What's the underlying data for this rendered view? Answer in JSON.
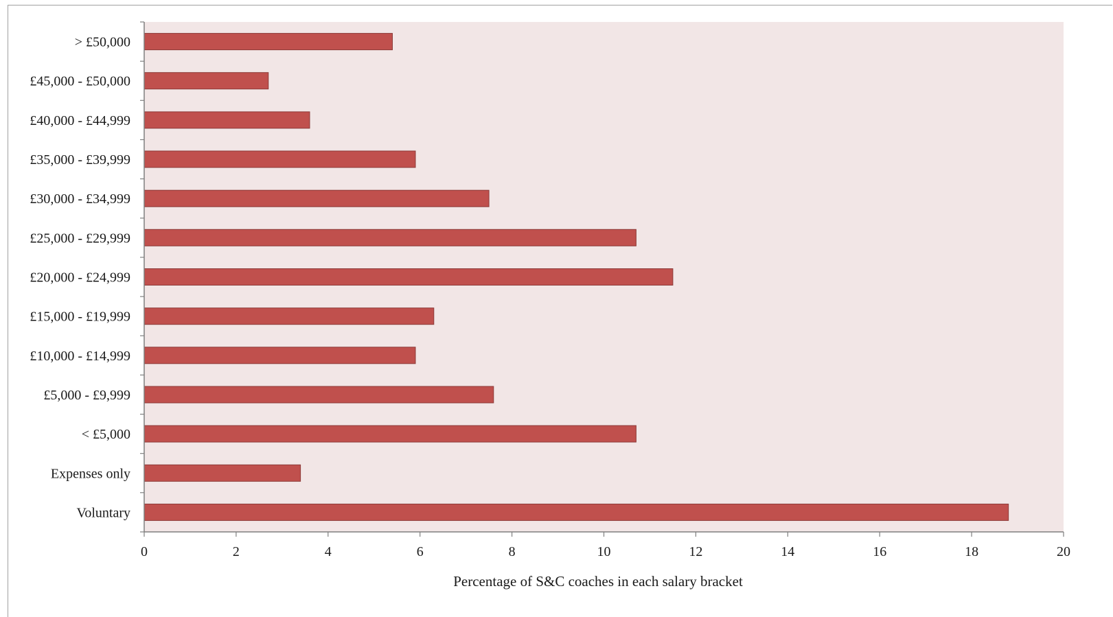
{
  "chart_data": {
    "type": "bar",
    "orientation": "horizontal",
    "categories": [
      "> £50,000",
      "£45,000 - £50,000",
      "£40,000 - £44,999",
      "£35,000 - £39,999",
      "£30,000 - £34,999",
      "£25,000 - £29,999",
      "£20,000 - £24,999",
      "£15,000 - £19,999",
      "£10,000 - £14,999",
      "£5,000 - £9,999",
      "< £5,000",
      "Expenses only",
      "Voluntary"
    ],
    "values": [
      5.4,
      2.7,
      3.6,
      5.9,
      7.5,
      10.7,
      11.5,
      6.3,
      5.9,
      7.6,
      10.7,
      3.4,
      18.8
    ],
    "title": "",
    "xlabel": "Percentage of S&C coaches in each salary bracket",
    "ylabel": "",
    "xlim": [
      0,
      20
    ],
    "xticks": [
      "0",
      "2",
      "4",
      "6",
      "8",
      "10",
      "12",
      "14",
      "16",
      "18",
      "20"
    ],
    "grid": false,
    "legend": "none",
    "colors": {
      "bar_fill": "#c0504d",
      "bar_stroke": "#8c3a38",
      "plot_background": "#f2e6e6",
      "axis": "#7f7f7f"
    }
  }
}
